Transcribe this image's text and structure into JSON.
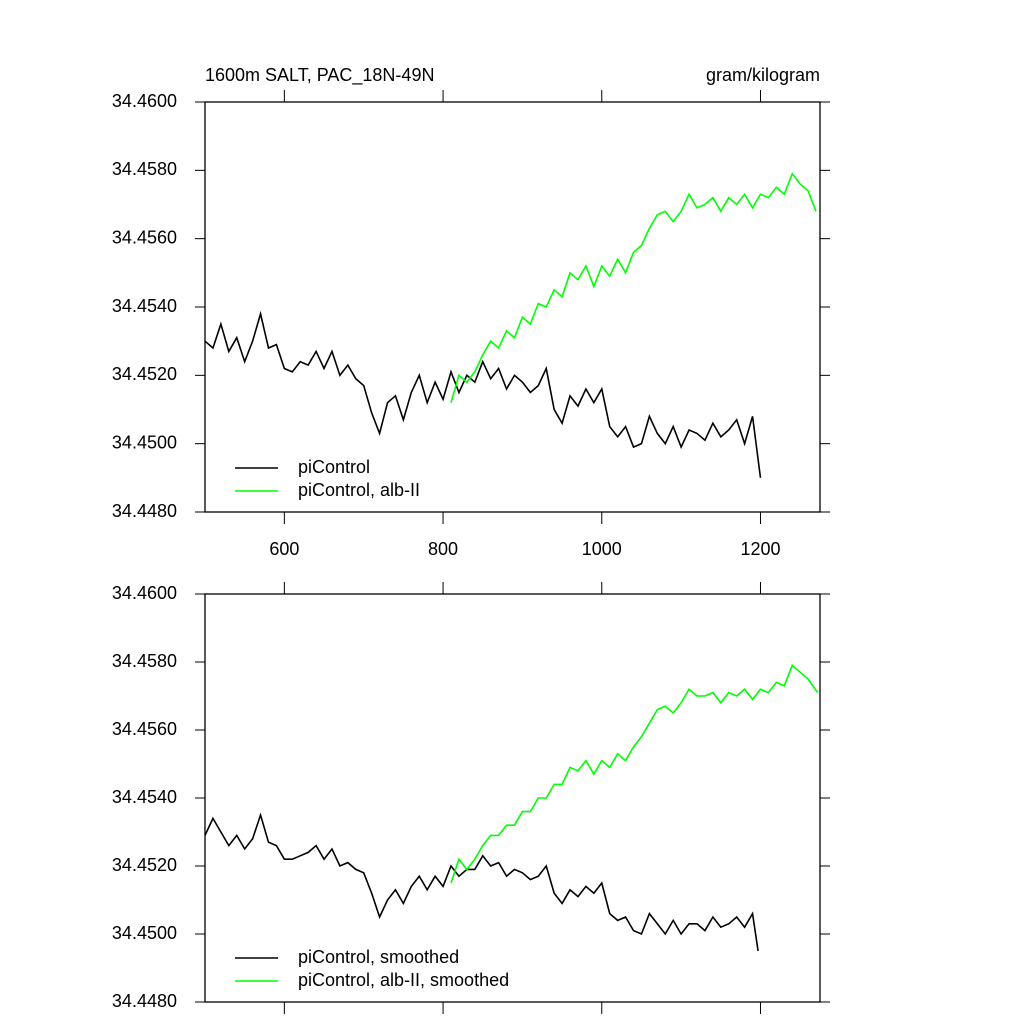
{
  "chart_data": [
    {
      "type": "line",
      "title": "1600m SALT, PAC_18N-49N",
      "units": "gram/kilogram",
      "xlim": [
        500,
        1275
      ],
      "xticks": [
        600,
        800,
        1000,
        1200
      ],
      "show_xtick_labels": true,
      "ylim": [
        34.448,
        34.46
      ],
      "yticks": [
        {
          "value": 34.448,
          "label": "34.4480"
        },
        {
          "value": 34.45,
          "label": "34.4500"
        },
        {
          "value": 34.452,
          "label": "34.4520"
        },
        {
          "value": 34.454,
          "label": "34.4540"
        },
        {
          "value": 34.456,
          "label": "34.4560"
        },
        {
          "value": 34.458,
          "label": "34.4580"
        },
        {
          "value": 34.46,
          "label": "34.4600"
        }
      ],
      "series": [
        {
          "name": "piControl",
          "color": "#000000",
          "x": [
            500,
            510,
            520,
            530,
            540,
            550,
            560,
            570,
            580,
            590,
            600,
            610,
            620,
            630,
            640,
            650,
            660,
            670,
            680,
            690,
            700,
            710,
            720,
            730,
            740,
            750,
            760,
            770,
            780,
            790,
            800,
            810,
            820,
            830,
            840,
            850,
            860,
            870,
            880,
            890,
            900,
            910,
            920,
            930,
            940,
            950,
            960,
            970,
            980,
            990,
            1000,
            1010,
            1020,
            1030,
            1040,
            1050,
            1060,
            1070,
            1080,
            1090,
            1100,
            1110,
            1120,
            1130,
            1140,
            1150,
            1160,
            1170,
            1180,
            1190,
            1200
          ],
          "values": [
            34.453,
            34.4528,
            34.4535,
            34.4527,
            34.4531,
            34.4524,
            34.453,
            34.4538,
            34.4528,
            34.4529,
            34.4522,
            34.4521,
            34.4524,
            34.4523,
            34.4527,
            34.4522,
            34.4527,
            34.452,
            34.4523,
            34.4519,
            34.4517,
            34.4509,
            34.4503,
            34.4512,
            34.4514,
            34.4507,
            34.4515,
            34.452,
            34.4512,
            34.4518,
            34.4513,
            34.4521,
            34.4515,
            34.452,
            34.4518,
            34.4524,
            34.4519,
            34.4522,
            34.4516,
            34.452,
            34.4518,
            34.4515,
            34.4517,
            34.4522,
            34.451,
            34.4506,
            34.4514,
            34.4511,
            34.4516,
            34.4512,
            34.4516,
            34.4505,
            34.4502,
            34.4505,
            34.4499,
            34.45,
            34.4508,
            34.4503,
            34.45,
            34.4505,
            34.4499,
            34.4504,
            34.4503,
            34.4501,
            34.4506,
            34.4502,
            34.4504,
            34.4507,
            34.45,
            34.4508,
            34.449
          ]
        },
        {
          "name": "piControl, alb-II",
          "color": "#00ff00",
          "x": [
            810,
            820,
            830,
            840,
            850,
            860,
            870,
            880,
            890,
            900,
            910,
            920,
            930,
            940,
            950,
            960,
            970,
            980,
            990,
            1000,
            1010,
            1020,
            1030,
            1040,
            1050,
            1060,
            1070,
            1080,
            1090,
            1100,
            1110,
            1120,
            1130,
            1140,
            1150,
            1160,
            1170,
            1180,
            1190,
            1200,
            1210,
            1220,
            1230,
            1240,
            1250,
            1260,
            1270
          ],
          "values": [
            34.4512,
            34.452,
            34.4518,
            34.4521,
            34.4526,
            34.453,
            34.4528,
            34.4533,
            34.4531,
            34.4537,
            34.4535,
            34.4541,
            34.454,
            34.4545,
            34.4543,
            34.455,
            34.4548,
            34.4552,
            34.4546,
            34.4552,
            34.4549,
            34.4554,
            34.455,
            34.4556,
            34.4558,
            34.4563,
            34.4567,
            34.4568,
            34.4565,
            34.4568,
            34.4573,
            34.4569,
            34.457,
            34.4572,
            34.4568,
            34.4572,
            34.457,
            34.4573,
            34.4569,
            34.4573,
            34.4572,
            34.4575,
            34.4573,
            34.4579,
            34.4576,
            34.4574,
            34.4568
          ]
        }
      ]
    },
    {
      "type": "line",
      "xlim": [
        500,
        1275
      ],
      "xticks": [
        600,
        800,
        1000,
        1200
      ],
      "show_xtick_labels": false,
      "ylim": [
        34.448,
        34.46
      ],
      "yticks": [
        {
          "value": 34.448,
          "label": "34.4480"
        },
        {
          "value": 34.45,
          "label": "34.4500"
        },
        {
          "value": 34.452,
          "label": "34.4520"
        },
        {
          "value": 34.454,
          "label": "34.4540"
        },
        {
          "value": 34.456,
          "label": "34.4560"
        },
        {
          "value": 34.458,
          "label": "34.4580"
        },
        {
          "value": 34.46,
          "label": "34.4600"
        }
      ],
      "series": [
        {
          "name": "piControl, smoothed",
          "color": "#000000",
          "x": [
            500,
            510,
            520,
            530,
            540,
            550,
            560,
            570,
            580,
            590,
            600,
            610,
            620,
            630,
            640,
            650,
            660,
            670,
            680,
            690,
            700,
            710,
            720,
            730,
            740,
            750,
            760,
            770,
            780,
            790,
            800,
            810,
            820,
            830,
            840,
            850,
            860,
            870,
            880,
            890,
            900,
            910,
            920,
            930,
            940,
            950,
            960,
            970,
            980,
            990,
            1000,
            1010,
            1020,
            1030,
            1040,
            1050,
            1060,
            1070,
            1080,
            1090,
            1100,
            1110,
            1120,
            1130,
            1140,
            1150,
            1160,
            1170,
            1180,
            1190,
            1197
          ],
          "values": [
            34.4529,
            34.4534,
            34.453,
            34.4526,
            34.4529,
            34.4525,
            34.4528,
            34.4535,
            34.4527,
            34.4526,
            34.4522,
            34.4522,
            34.4523,
            34.4524,
            34.4526,
            34.4522,
            34.4525,
            34.452,
            34.4521,
            34.4519,
            34.4518,
            34.4512,
            34.4505,
            34.451,
            34.4513,
            34.4509,
            34.4514,
            34.4517,
            34.4513,
            34.4517,
            34.4514,
            34.452,
            34.4517,
            34.4519,
            34.4519,
            34.4523,
            34.452,
            34.4521,
            34.4517,
            34.4519,
            34.4518,
            34.4516,
            34.4517,
            34.452,
            34.4512,
            34.4509,
            34.4513,
            34.4511,
            34.4514,
            34.4512,
            34.4515,
            34.4506,
            34.4504,
            34.4505,
            34.4501,
            34.45,
            34.4506,
            34.4503,
            34.45,
            34.4504,
            34.45,
            34.4503,
            34.4503,
            34.4501,
            34.4505,
            34.4502,
            34.4503,
            34.4505,
            34.4502,
            34.4506,
            34.4495
          ]
        },
        {
          "name": "piControl, alb-II, smoothed",
          "color": "#00ff00",
          "x": [
            810,
            820,
            830,
            840,
            850,
            860,
            870,
            880,
            890,
            900,
            910,
            920,
            930,
            940,
            950,
            960,
            970,
            980,
            990,
            1000,
            1010,
            1020,
            1030,
            1040,
            1050,
            1060,
            1070,
            1080,
            1090,
            1100,
            1110,
            1120,
            1130,
            1140,
            1150,
            1160,
            1170,
            1180,
            1190,
            1200,
            1210,
            1220,
            1230,
            1240,
            1250,
            1260,
            1272
          ],
          "values": [
            34.4515,
            34.4522,
            34.4519,
            34.4522,
            34.4526,
            34.4529,
            34.4529,
            34.4532,
            34.4532,
            34.4536,
            34.4536,
            34.454,
            34.454,
            34.4544,
            34.4544,
            34.4549,
            34.4548,
            34.4551,
            34.4547,
            34.4551,
            34.4549,
            34.4553,
            34.4551,
            34.4555,
            34.4558,
            34.4562,
            34.4566,
            34.4567,
            34.4565,
            34.4568,
            34.4572,
            34.457,
            34.457,
            34.4571,
            34.4568,
            34.4571,
            34.457,
            34.4572,
            34.4569,
            34.4572,
            34.4571,
            34.4574,
            34.4573,
            34.4579,
            34.4577,
            34.4575,
            34.4571
          ]
        }
      ]
    }
  ]
}
